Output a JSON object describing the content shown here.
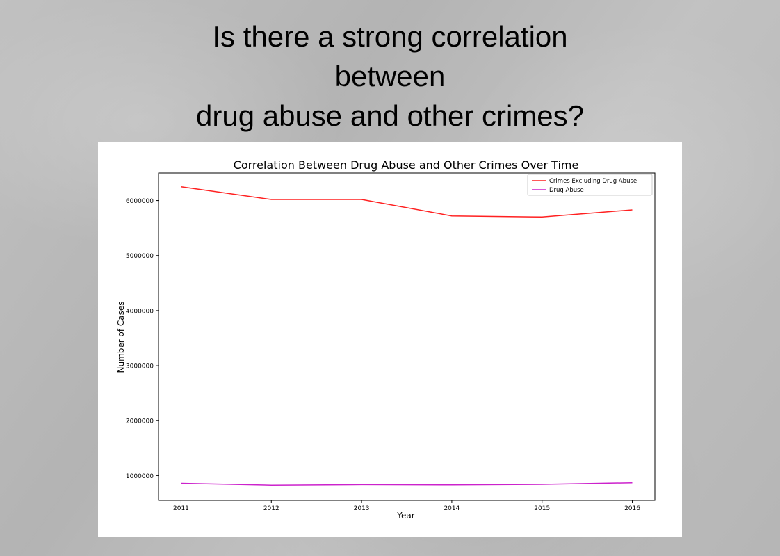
{
  "slide": {
    "title_lines": [
      "Is there a strong correlation",
      "between",
      "drug abuse and other crimes?"
    ]
  },
  "chart_data": {
    "type": "line",
    "title": "Correlation Between Drug Abuse and Other Crimes Over Time",
    "xlabel": "Year",
    "ylabel": "Number of Cases",
    "x": [
      2011,
      2012,
      2013,
      2014,
      2015,
      2016
    ],
    "x_tick_labels": [
      "2011",
      "2012",
      "2013",
      "2014",
      "2015",
      "2016"
    ],
    "y_ticks": [
      1000000,
      2000000,
      3000000,
      4000000,
      5000000,
      6000000
    ],
    "y_tick_labels": [
      "1000000",
      "2000000",
      "3000000",
      "4000000",
      "5000000",
      "6000000"
    ],
    "xlim": [
      2010.75,
      2016.25
    ],
    "ylim": [
      550000,
      6500000
    ],
    "grid": false,
    "legend_placement": "top-right",
    "series": [
      {
        "name": "Crimes Excluding Drug Abuse",
        "color": "#ff2020",
        "values": [
          6250000,
          6020000,
          6020000,
          5720000,
          5700000,
          5830000
        ]
      },
      {
        "name": "Drug Abuse",
        "color": "#cc22cc",
        "values": [
          860000,
          825000,
          835000,
          830000,
          840000,
          870000
        ]
      }
    ]
  }
}
